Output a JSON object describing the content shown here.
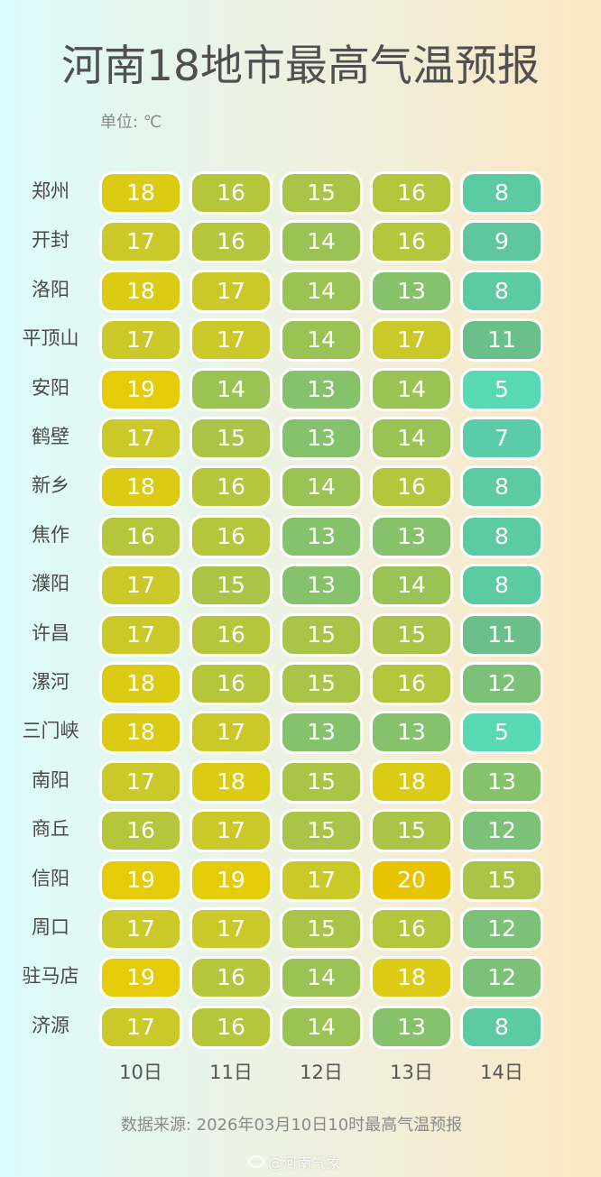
{
  "header": {
    "title": "河南18地市最高气温预报",
    "unit": "单位: ℃"
  },
  "footer": {
    "source": "数据来源: 2026年03月10日10时最高气温预报",
    "watermark": "@河南气象",
    "watermark_icon": "weibo-icon"
  },
  "colors": {
    "5": "#58d8b4",
    "7": "#5acda8",
    "8": "#5ccaa2",
    "9": "#5fc69e",
    "11": "#6abf8a",
    "12": "#7cc178",
    "13": "#86c16c",
    "14": "#9ac255",
    "15": "#a9c446",
    "16": "#b6c63c",
    "17": "#cbc92a",
    "18": "#dccb14",
    "19": "#e4cc08",
    "20": "#e8c400"
  },
  "chart_data": {
    "type": "heatmap",
    "title": "河南18地市最高气温预报",
    "unit": "℃",
    "xlabel": "",
    "ylabel": "",
    "x": [
      "10日",
      "11日",
      "12日",
      "13日",
      "14日"
    ],
    "y": [
      "郑州",
      "开封",
      "洛阳",
      "平顶山",
      "安阳",
      "鹤壁",
      "新乡",
      "焦作",
      "濮阳",
      "许昌",
      "漯河",
      "三门峡",
      "南阳",
      "商丘",
      "信阳",
      "周口",
      "驻马店",
      "济源"
    ],
    "values": [
      [
        18,
        16,
        15,
        16,
        8
      ],
      [
        17,
        16,
        14,
        16,
        9
      ],
      [
        18,
        17,
        14,
        13,
        8
      ],
      [
        17,
        17,
        14,
        17,
        11
      ],
      [
        19,
        14,
        13,
        14,
        5
      ],
      [
        17,
        15,
        13,
        14,
        7
      ],
      [
        18,
        16,
        14,
        16,
        8
      ],
      [
        16,
        16,
        13,
        13,
        8
      ],
      [
        17,
        15,
        13,
        14,
        8
      ],
      [
        17,
        16,
        15,
        15,
        11
      ],
      [
        18,
        16,
        15,
        16,
        12
      ],
      [
        18,
        17,
        13,
        13,
        5
      ],
      [
        17,
        18,
        15,
        18,
        13
      ],
      [
        16,
        17,
        15,
        15,
        12
      ],
      [
        19,
        19,
        17,
        20,
        15
      ],
      [
        17,
        17,
        15,
        16,
        12
      ],
      [
        19,
        16,
        14,
        18,
        12
      ],
      [
        17,
        16,
        14,
        13,
        8
      ]
    ],
    "color_scale": "teal (low) → green → yellow (high)",
    "source": "数据来源: 2026年03月10日10时最高气温预报"
  }
}
